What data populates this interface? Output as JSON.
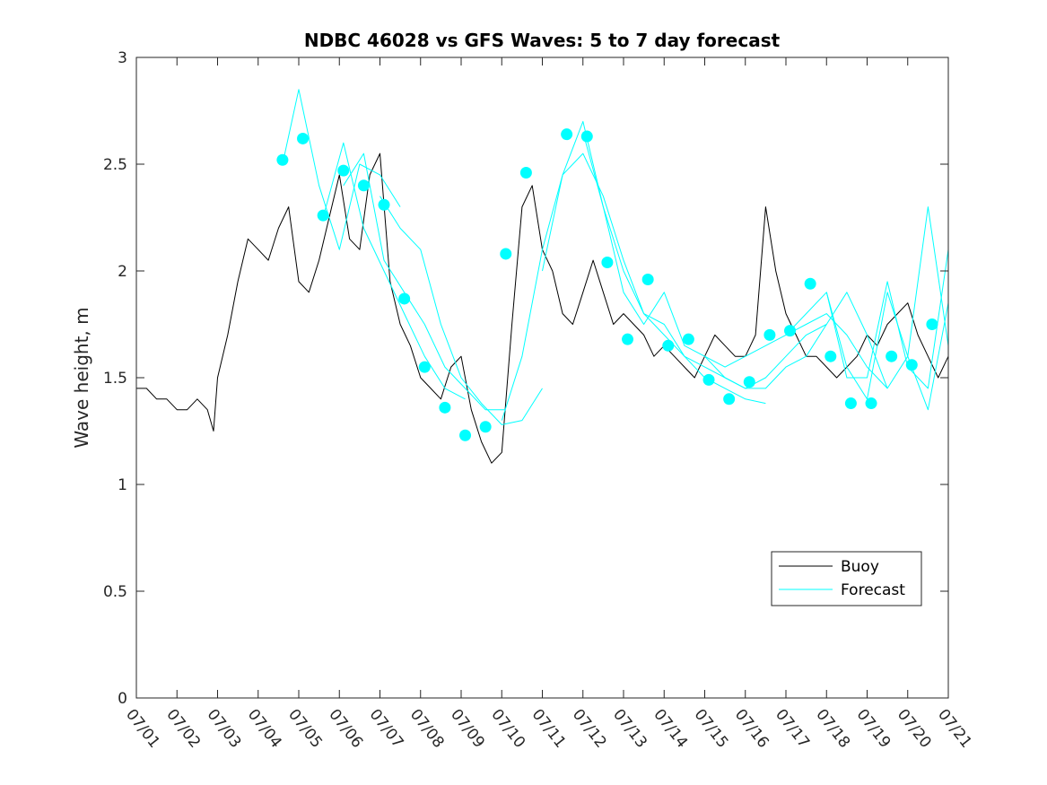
{
  "chart_data": {
    "type": "line",
    "title": "NDBC 46028 vs GFS Waves: 5 to 7 day forecast",
    "ylabel": "Wave height, m",
    "xlabel": "",
    "xlim": [
      0,
      20
    ],
    "ylim": [
      0,
      3
    ],
    "x_ticks": [
      "07/01",
      "07/02",
      "07/03",
      "07/04",
      "07/05",
      "07/06",
      "07/07",
      "07/08",
      "07/09",
      "07/10",
      "07/11",
      "07/12",
      "07/13",
      "07/14",
      "07/15",
      "07/16",
      "07/17",
      "07/18",
      "07/19",
      "07/20",
      "07/21"
    ],
    "y_ticks": [
      "0",
      "0.5",
      "1",
      "1.5",
      "2",
      "2.5",
      "3"
    ],
    "grid": false,
    "legend_position": "lower-right",
    "legend": [
      "Buoy",
      "Forecast"
    ],
    "colors": {
      "buoy": "#000000",
      "forecast": "#00FFFF",
      "axes": "#262626"
    },
    "series": [
      {
        "name": "Buoy",
        "x": [
          0.0,
          0.25,
          0.5,
          0.75,
          1.0,
          1.25,
          1.5,
          1.75,
          1.9,
          2.0,
          2.25,
          2.5,
          2.75,
          3.0,
          3.25,
          3.5,
          3.75,
          4.0,
          4.25,
          4.5,
          4.75,
          5.0,
          5.25,
          5.5,
          5.75,
          6.0,
          6.25,
          6.5,
          6.75,
          7.0,
          7.25,
          7.5,
          7.75,
          8.0,
          8.25,
          8.5,
          8.75,
          9.0,
          9.25,
          9.5,
          9.75,
          10.0,
          10.25,
          10.5,
          10.75,
          11.0,
          11.25,
          11.5,
          11.75,
          12.0,
          12.25,
          12.5,
          12.75,
          13.0,
          13.25,
          13.5,
          13.75,
          14.0,
          14.25,
          14.5,
          14.75,
          15.0,
          15.25,
          15.5,
          15.75,
          16.0,
          16.25,
          16.5,
          16.75,
          17.0,
          17.25,
          17.5,
          17.75,
          18.0,
          18.25,
          18.5,
          18.75,
          19.0,
          19.25,
          19.5,
          19.75,
          20.0,
          20.25
        ],
        "y": [
          1.45,
          1.45,
          1.4,
          1.4,
          1.35,
          1.35,
          1.4,
          1.35,
          1.25,
          1.5,
          1.7,
          1.95,
          2.15,
          2.1,
          2.05,
          2.2,
          2.3,
          1.95,
          1.9,
          2.05,
          2.25,
          2.45,
          2.15,
          2.1,
          2.45,
          2.55,
          1.95,
          1.75,
          1.65,
          1.5,
          1.45,
          1.4,
          1.55,
          1.6,
          1.35,
          1.2,
          1.1,
          1.15,
          1.75,
          2.3,
          2.4,
          2.1,
          2.0,
          1.8,
          1.75,
          1.9,
          2.05,
          1.9,
          1.75,
          1.8,
          1.75,
          1.7,
          1.6,
          1.65,
          1.6,
          1.55,
          1.5,
          1.6,
          1.7,
          1.65,
          1.6,
          1.6,
          1.7,
          2.3,
          2.0,
          1.8,
          1.7,
          1.6,
          1.6,
          1.55,
          1.5,
          1.55,
          1.6,
          1.7,
          1.65,
          1.75,
          1.8,
          1.85,
          1.7,
          1.6,
          1.5,
          1.6,
          1.45
        ]
      },
      {
        "name": "Forecast",
        "x": [
          3.6,
          4.0,
          4.5,
          5.0,
          5.5,
          6.0,
          6.5
        ],
        "y": [
          2.5,
          2.85,
          2.4,
          2.1,
          2.5,
          2.45,
          2.3
        ]
      },
      {
        "name": "",
        "x": [
          4.6,
          5.1,
          5.6,
          6.1,
          6.6,
          7.1,
          7.6,
          8.1
        ],
        "y": [
          2.25,
          2.6,
          2.2,
          2.0,
          1.8,
          1.6,
          1.45,
          1.4
        ]
      },
      {
        "name": "",
        "x": [
          5.1,
          5.6,
          6.1,
          6.6,
          7.1,
          7.6,
          8.1,
          8.6,
          9.1
        ],
        "y": [
          2.4,
          2.55,
          2.05,
          1.9,
          1.75,
          1.55,
          1.45,
          1.35,
          1.35
        ]
      },
      {
        "name": "",
        "x": [
          6.0,
          6.5,
          7.0,
          7.5,
          8.0,
          8.5,
          9.0,
          9.5,
          10.0
        ],
        "y": [
          2.35,
          2.2,
          2.1,
          1.75,
          1.5,
          1.38,
          1.28,
          1.3,
          1.45
        ]
      },
      {
        "name": "",
        "x": [
          9.0,
          9.5,
          10.0,
          10.5,
          11.0,
          11.5,
          12.0,
          12.5,
          13.0,
          13.5,
          14.0,
          14.5,
          15.0,
          15.5
        ],
        "y": [
          1.3,
          1.6,
          2.1,
          2.45,
          2.55,
          2.35,
          2.05,
          1.8,
          1.75,
          1.6,
          1.5,
          1.45,
          1.4,
          1.38
        ]
      },
      {
        "name": "",
        "x": [
          10.0,
          10.5,
          11.0,
          11.5,
          12.0,
          12.5,
          13.0,
          13.5,
          14.0,
          14.5,
          15.0,
          15.5,
          16.0,
          16.5,
          17.0
        ],
        "y": [
          2.0,
          2.45,
          2.7,
          2.3,
          2.0,
          1.8,
          1.7,
          1.6,
          1.55,
          1.5,
          1.45,
          1.5,
          1.6,
          1.7,
          1.75
        ]
      },
      {
        "name": "",
        "x": [
          11.0,
          11.5,
          12.0,
          12.5,
          13.0,
          13.5,
          14.0,
          14.5,
          15.0,
          15.5,
          16.0,
          16.5,
          17.0,
          17.5,
          18.0,
          18.5
        ],
        "y": [
          2.65,
          2.3,
          1.9,
          1.75,
          1.9,
          1.65,
          1.6,
          1.5,
          1.45,
          1.45,
          1.55,
          1.6,
          1.75,
          1.9,
          1.7,
          1.45
        ]
      },
      {
        "name": "",
        "x": [
          14.0,
          14.5,
          15.0,
          15.5,
          16.0,
          16.5,
          17.0,
          17.5,
          18.0,
          18.5,
          19.0,
          19.5,
          20.0
        ],
        "y": [
          1.6,
          1.55,
          1.6,
          1.65,
          1.7,
          1.75,
          1.8,
          1.7,
          1.55,
          1.45,
          1.6,
          2.3,
          1.65
        ]
      },
      {
        "name": "",
        "x": [
          16.0,
          16.5,
          17.0,
          17.5,
          18.0,
          18.5,
          19.0,
          19.5,
          20.0
        ],
        "y": [
          1.7,
          1.8,
          1.9,
          1.55,
          1.4,
          1.9,
          1.6,
          1.35,
          1.85
        ]
      },
      {
        "name": "",
        "x": [
          17.0,
          17.5,
          18.0,
          18.5,
          19.0,
          19.5,
          20.0
        ],
        "y": [
          1.9,
          1.5,
          1.5,
          1.95,
          1.55,
          1.45,
          2.1
        ]
      }
    ],
    "markers": {
      "name": "Forecast",
      "x": [
        3.6,
        4.1,
        4.6,
        5.1,
        5.6,
        6.1,
        6.6,
        7.1,
        7.6,
        8.1,
        8.6,
        9.1,
        9.6,
        10.6,
        11.1,
        11.6,
        12.1,
        12.6,
        13.1,
        13.6,
        14.1,
        14.6,
        15.1,
        15.6,
        16.1,
        16.6,
        17.1,
        17.6,
        18.1,
        18.6,
        19.1,
        19.6
      ],
      "y": [
        2.52,
        2.62,
        2.26,
        2.47,
        2.4,
        2.31,
        1.87,
        1.55,
        1.36,
        1.23,
        1.27,
        2.08,
        2.46,
        2.64,
        2.63,
        2.04,
        1.68,
        1.96,
        1.65,
        1.68,
        1.49,
        1.4,
        1.48,
        1.7,
        1.72,
        1.94,
        1.6,
        1.38,
        1.38,
        1.6,
        1.56,
        1.75
      ]
    }
  }
}
